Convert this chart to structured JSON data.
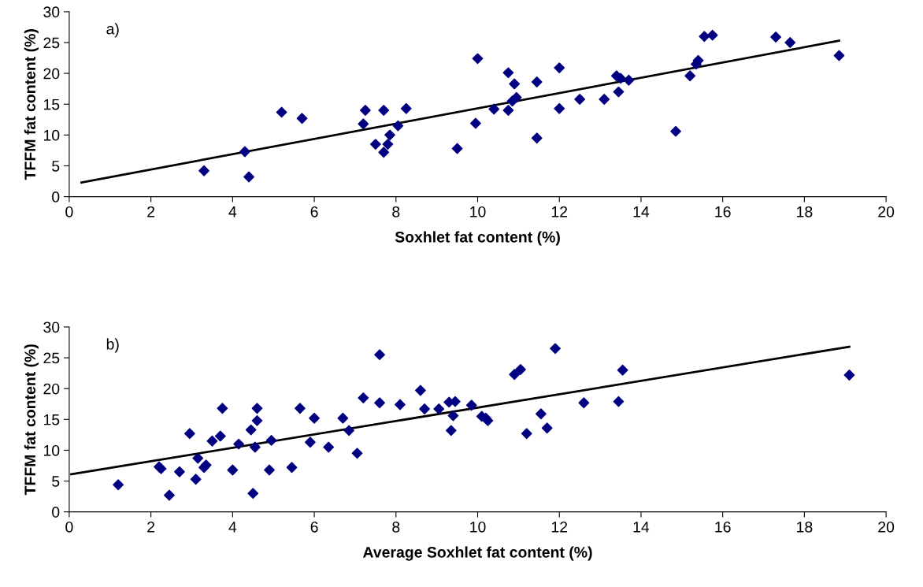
{
  "chart_data": [
    {
      "type": "scatter",
      "xlabel": "Soxhlet fat content (%)",
      "ylabel": "TFFM fat content (%)",
      "annotations": [
        "a)"
      ],
      "xlim": [
        0,
        20
      ],
      "ylim": [
        0,
        30
      ],
      "xticks": [
        0,
        2,
        4,
        6,
        8,
        10,
        12,
        14,
        16,
        18,
        20
      ],
      "yticks": [
        0,
        5,
        10,
        15,
        20,
        25,
        30
      ],
      "grid": false,
      "legend": false,
      "marker": "diamond",
      "series": [
        {
          "color": "#000080",
          "x": [
            3.3,
            4.3,
            4.4,
            5.2,
            5.7,
            7.2,
            7.25,
            7.5,
            7.7,
            7.7,
            7.8,
            7.85,
            8.05,
            8.25,
            9.5,
            9.95,
            10.0,
            10.4,
            10.75,
            10.75,
            10.9,
            10.85,
            10.95,
            11.45,
            11.45,
            12.0,
            12.0,
            12.5,
            13.1,
            13.4,
            13.45,
            13.5,
            13.7,
            14.85,
            15.2,
            15.35,
            15.4,
            15.55,
            15.75,
            17.3,
            17.65,
            18.85
          ],
          "values": [
            4.2,
            7.3,
            3.2,
            13.7,
            12.7,
            11.8,
            14.0,
            8.5,
            7.2,
            14.0,
            8.5,
            10.0,
            11.5,
            14.3,
            7.8,
            11.9,
            22.4,
            14.2,
            20.1,
            14.0,
            18.3,
            15.5,
            16.1,
            18.6,
            9.5,
            20.9,
            14.3,
            15.8,
            15.8,
            19.6,
            17.0,
            19.2,
            18.9,
            10.6,
            19.6,
            21.5,
            22.1,
            26.0,
            26.2,
            25.9,
            25.0,
            22.9
          ]
        },
        {
          "type": "line",
          "color": "#000000",
          "marker": "none",
          "x": [
            0.3,
            18.85
          ],
          "values": [
            2.3,
            25.3
          ]
        }
      ]
    },
    {
      "type": "scatter",
      "xlabel": "Average Soxhlet fat content (%)",
      "ylabel": "TFFM fat content (%)",
      "annotations": [
        "b)"
      ],
      "xlim": [
        0,
        20
      ],
      "ylim": [
        0,
        30
      ],
      "xticks": [
        0,
        2,
        4,
        6,
        8,
        10,
        12,
        14,
        16,
        18,
        20
      ],
      "yticks": [
        0,
        5,
        10,
        15,
        20,
        25,
        30
      ],
      "grid": false,
      "legend": false,
      "marker": "diamond",
      "series": [
        {
          "color": "#000080",
          "x": [
            1.2,
            2.2,
            2.25,
            2.45,
            2.7,
            2.95,
            3.1,
            3.15,
            3.3,
            3.35,
            3.5,
            3.7,
            3.75,
            4.0,
            4.15,
            4.45,
            4.5,
            4.55,
            4.6,
            4.6,
            4.95,
            4.9,
            5.45,
            5.65,
            5.9,
            6.0,
            6.35,
            6.7,
            6.85,
            7.05,
            7.2,
            7.6,
            7.6,
            8.1,
            8.6,
            8.7,
            9.05,
            9.3,
            9.35,
            9.4,
            9.45,
            9.85,
            10.1,
            10.25,
            10.2,
            10.9,
            11.05,
            11.2,
            11.55,
            11.7,
            11.9,
            12.6,
            13.45,
            13.55,
            19.1
          ],
          "values": [
            4.4,
            7.3,
            7.0,
            2.7,
            6.5,
            12.7,
            5.3,
            8.7,
            7.2,
            7.6,
            11.5,
            12.3,
            16.8,
            6.8,
            11.0,
            13.3,
            3.0,
            10.5,
            14.8,
            16.8,
            11.6,
            6.8,
            7.2,
            16.8,
            11.3,
            15.2,
            10.5,
            15.2,
            13.2,
            9.5,
            18.5,
            25.5,
            17.7,
            17.4,
            19.7,
            16.7,
            16.7,
            17.8,
            13.2,
            15.6,
            17.9,
            17.3,
            15.5,
            14.8,
            15.2,
            22.3,
            23.1,
            12.7,
            15.9,
            13.6,
            26.5,
            17.7,
            17.9,
            23.0,
            22.2
          ]
        },
        {
          "type": "line",
          "color": "#000000",
          "marker": "none",
          "x": [
            0.05,
            19.1
          ],
          "values": [
            6.1,
            26.8
          ]
        }
      ]
    }
  ]
}
